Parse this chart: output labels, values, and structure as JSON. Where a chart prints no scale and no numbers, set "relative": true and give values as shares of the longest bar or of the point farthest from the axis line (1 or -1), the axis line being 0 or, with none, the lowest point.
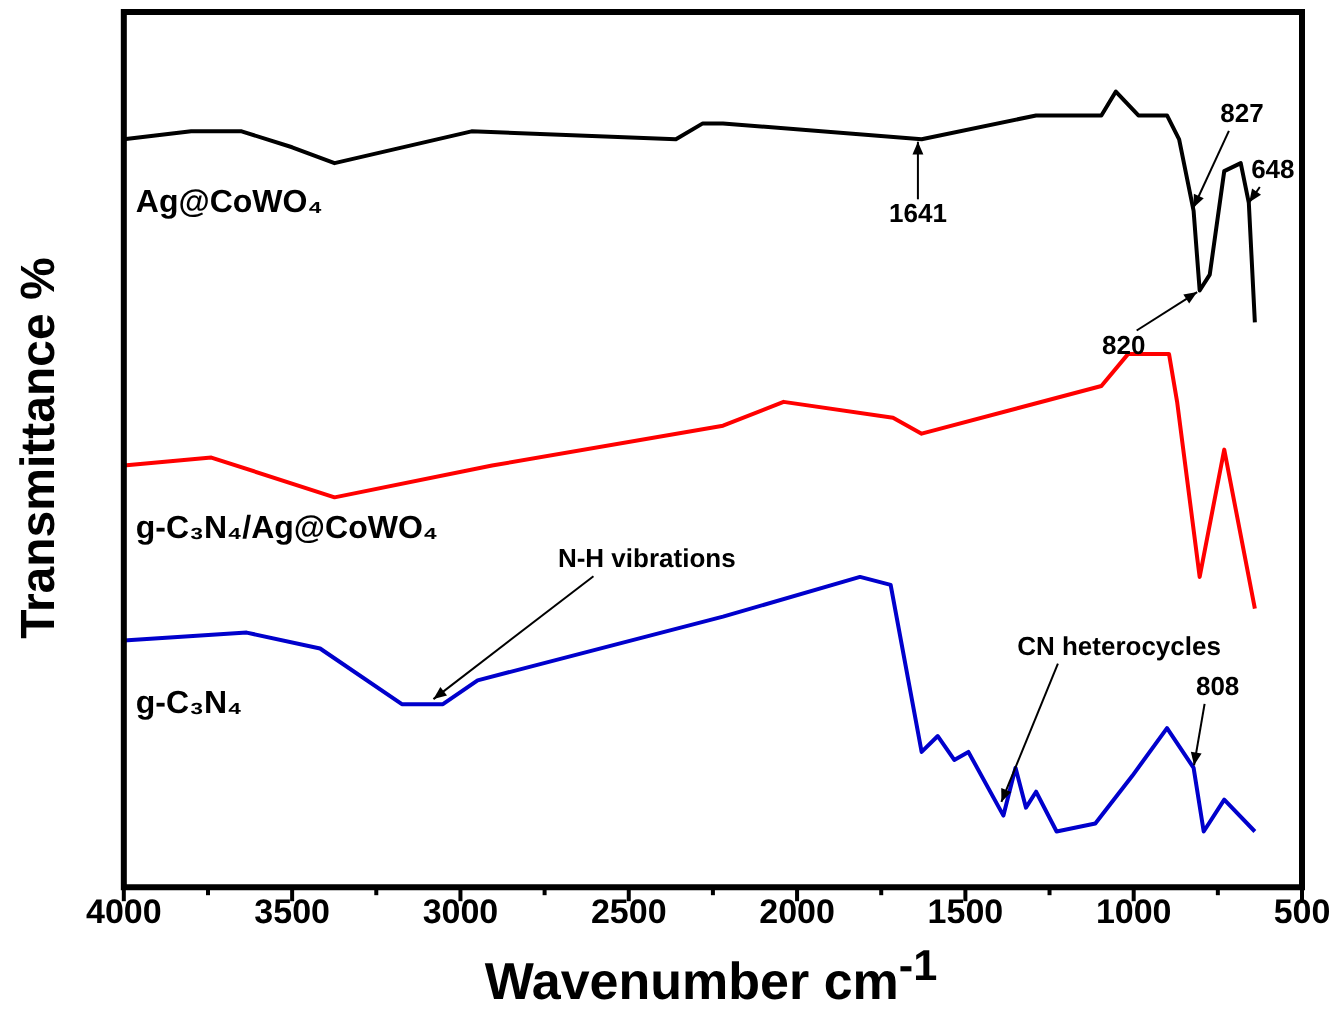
{
  "chart_data": {
    "type": "line",
    "xlabel": "Wavenumber cm$^{-1}$",
    "ylabel": "Transmittance %",
    "relative": true,
    "xlim": [
      4000,
      500
    ],
    "xticks": [
      4000,
      3500,
      3000,
      2500,
      2000,
      1500,
      1000,
      500
    ],
    "tick_labels": "x",
    "grid": false,
    "legend": false,
    "marker": "none",
    "line_style": "solid",
    "series": [
      {
        "name": "Ag@CoWO₄",
        "color": "#000000",
        "x": [
          4000,
          3800,
          3650,
          3500,
          3374,
          2967,
          2360,
          2280,
          2220,
          1630,
          1290,
          1096,
          1053,
          986,
          901,
          865,
          822,
          804,
          774,
          731,
          682,
          658,
          640
        ],
        "values": [
          0.94,
          0.95,
          0.95,
          0.93,
          0.91,
          0.95,
          0.94,
          0.96,
          0.96,
          0.94,
          0.97,
          0.97,
          1.0,
          0.97,
          0.97,
          0.94,
          0.85,
          0.75,
          0.77,
          0.9,
          0.91,
          0.86,
          0.71
        ]
      },
      {
        "name": "g-C₃N₄/Ag@CoWO₄",
        "color": "#ff0000",
        "x": [
          4000,
          3740,
          3374,
          2906,
          2220,
          2040,
          1715,
          1630,
          1096,
          1017,
          895,
          871,
          804,
          731,
          640
        ],
        "values": [
          0.53,
          0.54,
          0.49,
          0.53,
          0.58,
          0.61,
          0.59,
          0.57,
          0.63,
          0.67,
          0.67,
          0.61,
          0.39,
          0.55,
          0.35
        ]
      },
      {
        "name": "g-C₃N₄",
        "color": "#0000cc",
        "x": [
          4000,
          3635,
          3417,
          3174,
          3052,
          2949,
          2220,
          1813,
          1722,
          1630,
          1582,
          1533,
          1491,
          1387,
          1351,
          1320,
          1290,
          1229,
          1114,
          1004,
          901,
          822,
          792,
          731,
          640
        ],
        "values": [
          0.31,
          0.32,
          0.3,
          0.23,
          0.23,
          0.26,
          0.34,
          0.39,
          0.38,
          0.17,
          0.19,
          0.16,
          0.17,
          0.09,
          0.15,
          0.1,
          0.12,
          0.07,
          0.08,
          0.14,
          0.2,
          0.15,
          0.07,
          0.11,
          0.07
        ]
      }
    ],
    "annotations": [
      {
        "text": "1641",
        "x": 1641,
        "y": 0.94
      },
      {
        "text": "827",
        "x": 827,
        "y": 0.85
      },
      {
        "text": "820",
        "x": 804,
        "y": 0.75
      },
      {
        "text": "648",
        "x": 658,
        "y": 0.86
      },
      {
        "text": "N-H vibrations",
        "x": 3100,
        "y": 0.23
      },
      {
        "text": "CN heterocycles",
        "x": 1400,
        "y": 0.1
      },
      {
        "text": "808",
        "x": 822,
        "y": 0.15
      }
    ]
  }
}
